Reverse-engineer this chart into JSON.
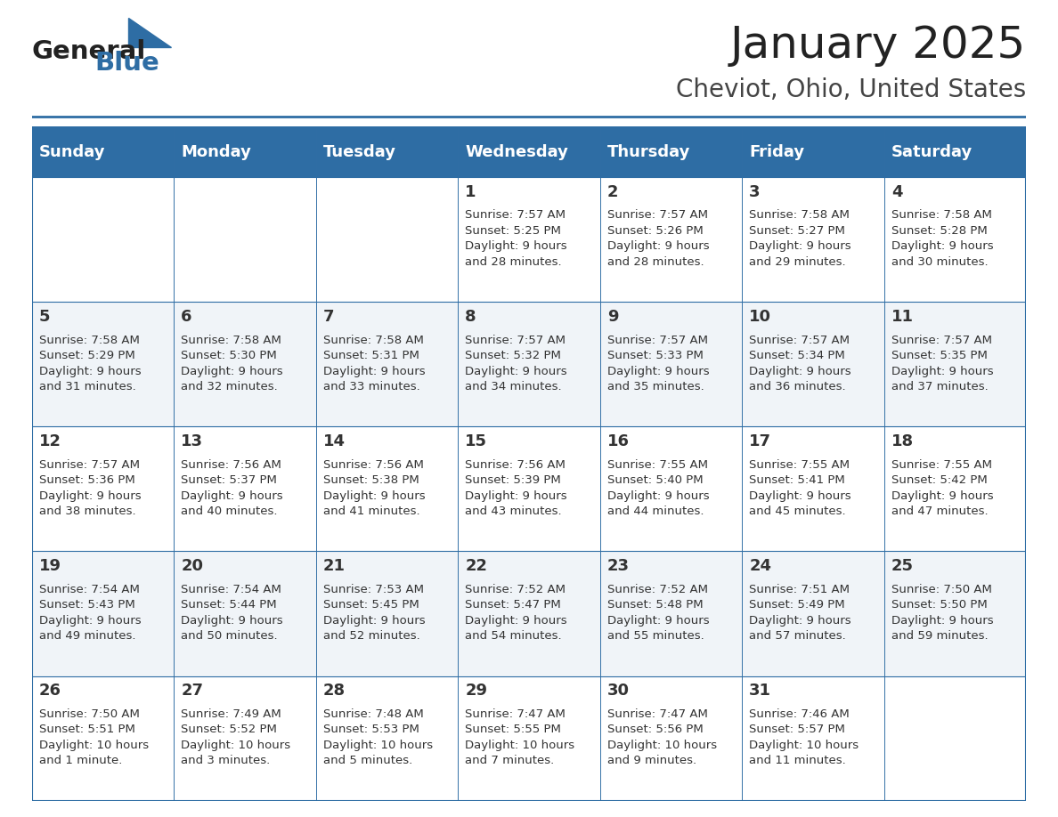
{
  "title": "January 2025",
  "subtitle": "Cheviot, Ohio, United States",
  "header_bg_color": "#2E6DA4",
  "header_text_color": "#FFFFFF",
  "day_names": [
    "Sunday",
    "Monday",
    "Tuesday",
    "Wednesday",
    "Thursday",
    "Friday",
    "Saturday"
  ],
  "cell_bg_even": "#FFFFFF",
  "cell_bg_odd": "#F0F4F8",
  "border_color": "#2E6DA4",
  "day_number_color": "#333333",
  "cell_text_color": "#333333",
  "logo_text1": "General",
  "logo_text2": "Blue",
  "logo_color1": "#222222",
  "logo_color2": "#2E6DA4",
  "title_fontsize": 36,
  "subtitle_fontsize": 20,
  "header_fontsize": 13,
  "day_num_fontsize": 13,
  "cell_text_fontsize": 9.5,
  "weeks": [
    [
      {
        "day": null,
        "info": ""
      },
      {
        "day": null,
        "info": ""
      },
      {
        "day": null,
        "info": ""
      },
      {
        "day": 1,
        "info": "Sunrise: 7:57 AM\nSunset: 5:25 PM\nDaylight: 9 hours\nand 28 minutes."
      },
      {
        "day": 2,
        "info": "Sunrise: 7:57 AM\nSunset: 5:26 PM\nDaylight: 9 hours\nand 28 minutes."
      },
      {
        "day": 3,
        "info": "Sunrise: 7:58 AM\nSunset: 5:27 PM\nDaylight: 9 hours\nand 29 minutes."
      },
      {
        "day": 4,
        "info": "Sunrise: 7:58 AM\nSunset: 5:28 PM\nDaylight: 9 hours\nand 30 minutes."
      }
    ],
    [
      {
        "day": 5,
        "info": "Sunrise: 7:58 AM\nSunset: 5:29 PM\nDaylight: 9 hours\nand 31 minutes."
      },
      {
        "day": 6,
        "info": "Sunrise: 7:58 AM\nSunset: 5:30 PM\nDaylight: 9 hours\nand 32 minutes."
      },
      {
        "day": 7,
        "info": "Sunrise: 7:58 AM\nSunset: 5:31 PM\nDaylight: 9 hours\nand 33 minutes."
      },
      {
        "day": 8,
        "info": "Sunrise: 7:57 AM\nSunset: 5:32 PM\nDaylight: 9 hours\nand 34 minutes."
      },
      {
        "day": 9,
        "info": "Sunrise: 7:57 AM\nSunset: 5:33 PM\nDaylight: 9 hours\nand 35 minutes."
      },
      {
        "day": 10,
        "info": "Sunrise: 7:57 AM\nSunset: 5:34 PM\nDaylight: 9 hours\nand 36 minutes."
      },
      {
        "day": 11,
        "info": "Sunrise: 7:57 AM\nSunset: 5:35 PM\nDaylight: 9 hours\nand 37 minutes."
      }
    ],
    [
      {
        "day": 12,
        "info": "Sunrise: 7:57 AM\nSunset: 5:36 PM\nDaylight: 9 hours\nand 38 minutes."
      },
      {
        "day": 13,
        "info": "Sunrise: 7:56 AM\nSunset: 5:37 PM\nDaylight: 9 hours\nand 40 minutes."
      },
      {
        "day": 14,
        "info": "Sunrise: 7:56 AM\nSunset: 5:38 PM\nDaylight: 9 hours\nand 41 minutes."
      },
      {
        "day": 15,
        "info": "Sunrise: 7:56 AM\nSunset: 5:39 PM\nDaylight: 9 hours\nand 43 minutes."
      },
      {
        "day": 16,
        "info": "Sunrise: 7:55 AM\nSunset: 5:40 PM\nDaylight: 9 hours\nand 44 minutes."
      },
      {
        "day": 17,
        "info": "Sunrise: 7:55 AM\nSunset: 5:41 PM\nDaylight: 9 hours\nand 45 minutes."
      },
      {
        "day": 18,
        "info": "Sunrise: 7:55 AM\nSunset: 5:42 PM\nDaylight: 9 hours\nand 47 minutes."
      }
    ],
    [
      {
        "day": 19,
        "info": "Sunrise: 7:54 AM\nSunset: 5:43 PM\nDaylight: 9 hours\nand 49 minutes."
      },
      {
        "day": 20,
        "info": "Sunrise: 7:54 AM\nSunset: 5:44 PM\nDaylight: 9 hours\nand 50 minutes."
      },
      {
        "day": 21,
        "info": "Sunrise: 7:53 AM\nSunset: 5:45 PM\nDaylight: 9 hours\nand 52 minutes."
      },
      {
        "day": 22,
        "info": "Sunrise: 7:52 AM\nSunset: 5:47 PM\nDaylight: 9 hours\nand 54 minutes."
      },
      {
        "day": 23,
        "info": "Sunrise: 7:52 AM\nSunset: 5:48 PM\nDaylight: 9 hours\nand 55 minutes."
      },
      {
        "day": 24,
        "info": "Sunrise: 7:51 AM\nSunset: 5:49 PM\nDaylight: 9 hours\nand 57 minutes."
      },
      {
        "day": 25,
        "info": "Sunrise: 7:50 AM\nSunset: 5:50 PM\nDaylight: 9 hours\nand 59 minutes."
      }
    ],
    [
      {
        "day": 26,
        "info": "Sunrise: 7:50 AM\nSunset: 5:51 PM\nDaylight: 10 hours\nand 1 minute."
      },
      {
        "day": 27,
        "info": "Sunrise: 7:49 AM\nSunset: 5:52 PM\nDaylight: 10 hours\nand 3 minutes."
      },
      {
        "day": 28,
        "info": "Sunrise: 7:48 AM\nSunset: 5:53 PM\nDaylight: 10 hours\nand 5 minutes."
      },
      {
        "day": 29,
        "info": "Sunrise: 7:47 AM\nSunset: 5:55 PM\nDaylight: 10 hours\nand 7 minutes."
      },
      {
        "day": 30,
        "info": "Sunrise: 7:47 AM\nSunset: 5:56 PM\nDaylight: 10 hours\nand 9 minutes."
      },
      {
        "day": 31,
        "info": "Sunrise: 7:46 AM\nSunset: 5:57 PM\nDaylight: 10 hours\nand 11 minutes."
      },
      {
        "day": null,
        "info": ""
      }
    ]
  ]
}
